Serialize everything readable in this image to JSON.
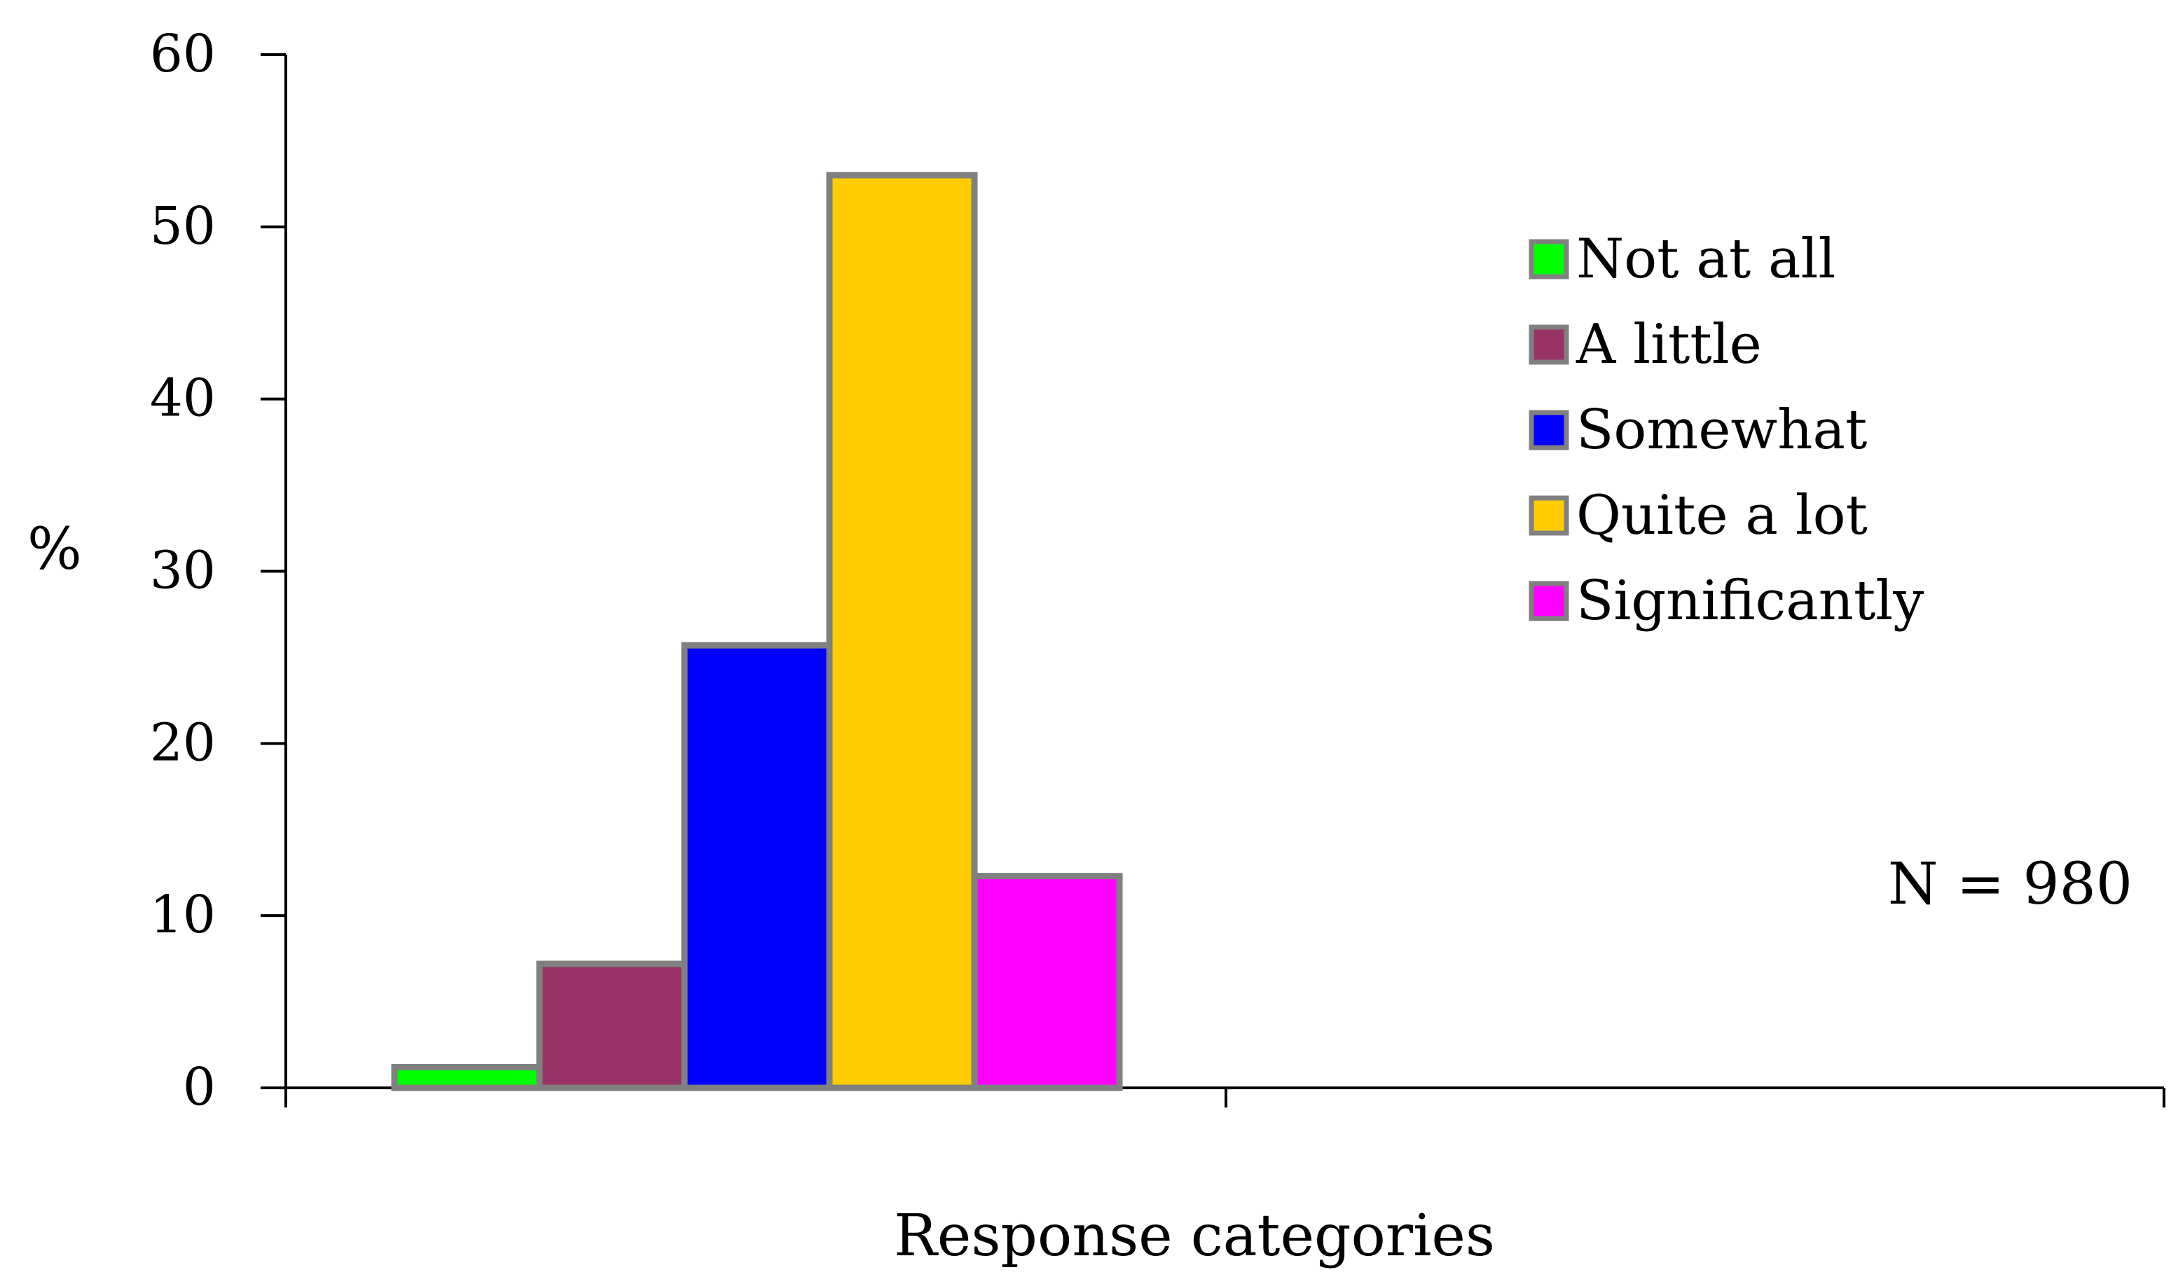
{
  "chart_data": {
    "type": "bar",
    "categories": [
      "Not at all",
      "A little",
      "Somewhat",
      "Quite a lot",
      "Significantly"
    ],
    "series": [
      {
        "name": "Not at all",
        "value": 1.2,
        "color": "#00ff00"
      },
      {
        "name": "A little",
        "value": 7.2,
        "color": "#993366"
      },
      {
        "name": "Somewhat",
        "value": 25.7,
        "color": "#0000ff"
      },
      {
        "name": "Quite a lot",
        "value": 53.0,
        "color": "#ffcc00"
      },
      {
        "name": "Significantly",
        "value": 12.3,
        "color": "#ff00ff"
      }
    ],
    "bar_edge_color": "#808080",
    "xlabel": "Response categories",
    "ylabel": "%",
    "ylim": [
      0,
      60
    ],
    "yticks": [
      "0",
      "10",
      "20",
      "30",
      "40",
      "50",
      "60"
    ],
    "legend_position": "right",
    "annotation": "N = 980",
    "grid": false
  }
}
